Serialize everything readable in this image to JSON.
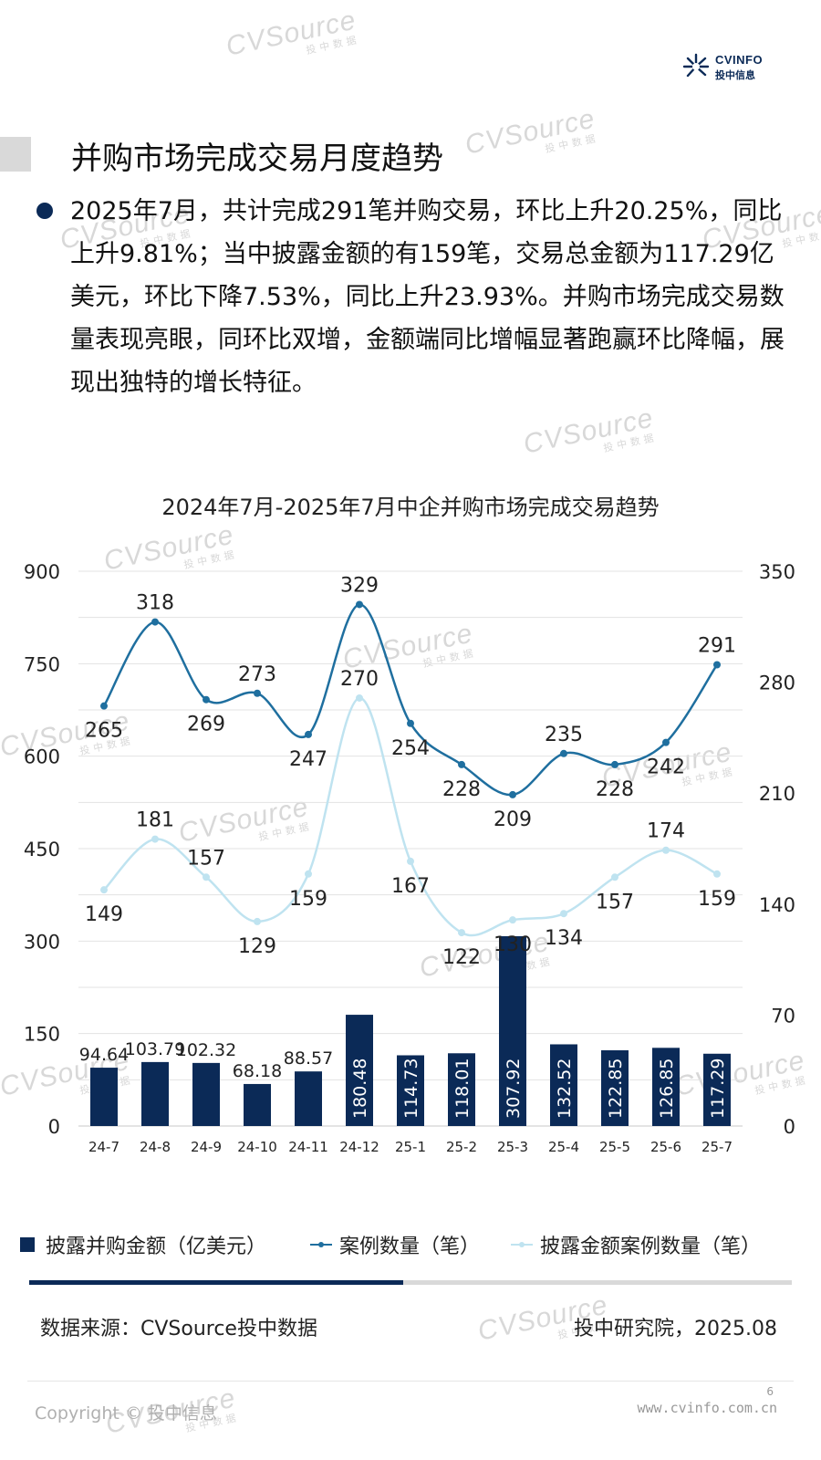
{
  "logo": {
    "text_en": "CVINFO",
    "text_cn": "投中信息"
  },
  "watermark": {
    "brand": "CVSource",
    "sub": "投中数据"
  },
  "header": {
    "title": "并购市场完成交易月度趋势"
  },
  "summary": "2025年7月，共计完成291笔并购交易，环比上升20.25%，同比上升9.81%；当中披露金额的有159笔，交易总金额为117.29亿美元，环比下降7.53%，同比上升23.93%。并购市场完成交易数量表现亮眼，同环比双增，金额端同比增幅显著跑赢环比降幅，展现出独特的增长特征。",
  "chart_data": {
    "type": "bar+line",
    "title": "2024年7月-2025年7月中企并购市场完成交易趋势",
    "categories": [
      "24-7",
      "24-8",
      "24-9",
      "24-10",
      "24-11",
      "24-12",
      "25-1",
      "25-2",
      "25-3",
      "25-4",
      "25-5",
      "25-6",
      "25-7"
    ],
    "y_left": {
      "min": 0,
      "max": 900,
      "ticks": [
        0,
        150,
        300,
        450,
        600,
        750,
        900
      ]
    },
    "y_right": {
      "min": 0,
      "max": 350,
      "ticks": [
        0,
        70,
        140,
        210,
        280,
        350
      ]
    },
    "grid": true,
    "legend_position": "bottom",
    "series": [
      {
        "name": "披露并购金额（亿美元）",
        "type": "bar",
        "axis": "left",
        "color": "#0b2a57",
        "values": [
          94.64,
          103.79,
          102.32,
          68.18,
          88.57,
          180.48,
          114.73,
          118.01,
          307.92,
          132.52,
          122.85,
          126.85,
          117.29
        ]
      },
      {
        "name": "案例数量（笔）",
        "type": "line",
        "axis": "right",
        "color": "#1f6f9f",
        "values": [
          265,
          318,
          269,
          273,
          247,
          329,
          254,
          228,
          209,
          235,
          228,
          242,
          291
        ]
      },
      {
        "name": "披露金额案例数量（笔）",
        "type": "line",
        "axis": "right",
        "color": "#bfe3f0",
        "values": [
          149,
          181,
          157,
          129,
          159,
          270,
          167,
          122,
          130,
          134,
          157,
          174,
          159
        ]
      }
    ]
  },
  "footer": {
    "source": "数据来源：CVSource投中数据",
    "author": "投中研究院，2025.08",
    "copyright": "Copyright © 投中信息",
    "page": "6",
    "site": "www.cvinfo.com.cn",
    "progress": 0.49
  }
}
